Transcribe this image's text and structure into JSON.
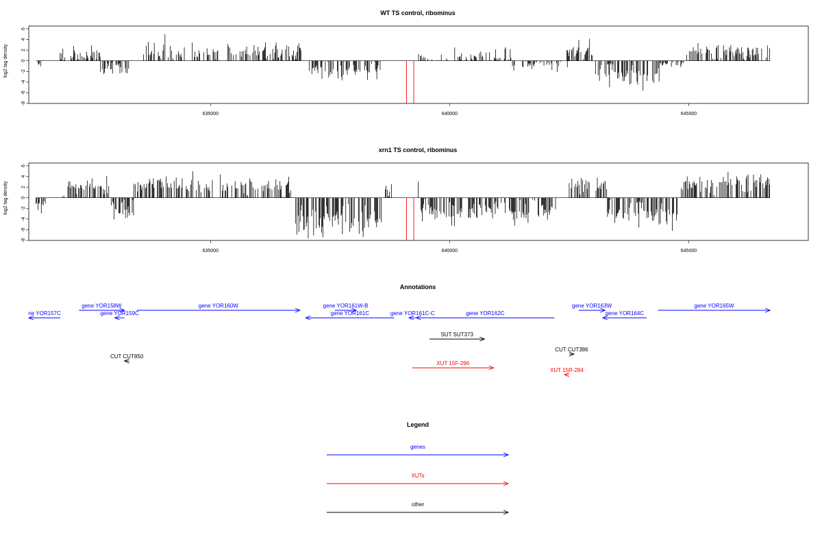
{
  "chart_data": [
    {
      "type": "bar",
      "title": "WT TS control, ribominus",
      "ylabel": "log2 tag density",
      "xlabel": "",
      "xlim": [
        631200,
        647500
      ],
      "ylim": [
        -8,
        6
      ],
      "yticks": [
        -8,
        -6,
        -4,
        -2,
        0,
        2,
        4,
        6
      ],
      "xticks": [
        635000,
        640000,
        645000
      ],
      "xtick_labels": [
        "635000",
        "640000",
        "645000"
      ],
      "bar_color": "#000000",
      "segments": [
        {
          "from": 631350,
          "to": 631450,
          "mu": -0.6,
          "sd": 0.5
        },
        {
          "from": 631800,
          "to": 632300,
          "mu": 0.9,
          "sd": 0.9
        },
        {
          "from": 632300,
          "to": 632700,
          "mu": 1.3,
          "sd": 0.8
        },
        {
          "from": 632700,
          "to": 633300,
          "mu": -2.0,
          "sd": 1.0
        },
        {
          "from": 633600,
          "to": 634200,
          "mu": 1.6,
          "sd": 1.1
        },
        {
          "from": 634200,
          "to": 635200,
          "mu": 1.5,
          "sd": 0.8
        },
        {
          "from": 635350,
          "to": 636900,
          "mu": 1.7,
          "sd": 0.9
        },
        {
          "from": 637050,
          "to": 638600,
          "mu": -1.8,
          "sd": 0.9
        },
        {
          "from": 639350,
          "to": 641300,
          "mu": 0.5,
          "sd": 0.8
        },
        {
          "from": 641300,
          "to": 642500,
          "mu": -0.6,
          "sd": 0.6
        },
        {
          "from": 642450,
          "to": 643000,
          "mu": 1.6,
          "sd": 1.0
        },
        {
          "from": 643050,
          "to": 644400,
          "mu": -2.8,
          "sd": 1.1
        },
        {
          "from": 644400,
          "to": 644900,
          "mu": -0.5,
          "sd": 0.4
        },
        {
          "from": 644900,
          "to": 646700,
          "mu": 1.6,
          "sd": 0.8
        }
      ],
      "red_lines": [
        639100,
        639250
      ]
    },
    {
      "type": "bar",
      "title": "xrn1 TS control, ribominus",
      "ylabel": "log2 tag density",
      "xlabel": "",
      "xlim": [
        631200,
        647500
      ],
      "ylim": [
        -8,
        6
      ],
      "yticks": [
        -8,
        -6,
        -4,
        -2,
        0,
        2,
        4,
        6
      ],
      "xticks": [
        635000,
        640000,
        645000
      ],
      "xtick_labels": [
        "635000",
        "640000",
        "645000"
      ],
      "bar_color": "#000000",
      "segments": [
        {
          "from": 631350,
          "to": 631550,
          "mu": -1.5,
          "sd": 0.6
        },
        {
          "from": 631850,
          "to": 632900,
          "mu": 1.8,
          "sd": 0.9
        },
        {
          "from": 632900,
          "to": 633400,
          "mu": -2.4,
          "sd": 1.0
        },
        {
          "from": 633400,
          "to": 636700,
          "mu": 2.2,
          "sd": 0.9
        },
        {
          "from": 636750,
          "to": 638600,
          "mu": -4.2,
          "sd": 1.5
        },
        {
          "from": 638600,
          "to": 638800,
          "mu": 1.5,
          "sd": 0.8
        },
        {
          "from": 639300,
          "to": 639350,
          "mu": 2.5,
          "sd": 0.3
        },
        {
          "from": 639400,
          "to": 642250,
          "mu": -2.4,
          "sd": 1.1
        },
        {
          "from": 642500,
          "to": 643300,
          "mu": 2.3,
          "sd": 0.9
        },
        {
          "from": 643300,
          "to": 644800,
          "mu": -3.2,
          "sd": 1.2
        },
        {
          "from": 644800,
          "to": 646700,
          "mu": 2.7,
          "sd": 1.0
        }
      ],
      "red_lines": [
        639100,
        639250
      ]
    }
  ],
  "annotations": {
    "title": "Annotations",
    "features": [
      {
        "label": "ne YOR157C",
        "start": 631200,
        "end": 631860,
        "strand": "-",
        "type": "gene"
      },
      {
        "label": "gene YOR158W",
        "start": 632250,
        "end": 633200,
        "strand": "+",
        "type": "gene"
      },
      {
        "label": "gene YOR159C",
        "start": 633000,
        "end": 633200,
        "strand": "-",
        "type": "gene"
      },
      {
        "label": "gene YOR160W",
        "start": 633460,
        "end": 636870,
        "strand": "+",
        "type": "gene"
      },
      {
        "label": "gene YOR161W-B",
        "start": 637600,
        "end": 638050,
        "strand": "+",
        "type": "gene"
      },
      {
        "label": "gene YOR161C",
        "start": 636990,
        "end": 638840,
        "strand": "-",
        "type": "gene"
      },
      {
        "label": "gene YOR161C-C",
        "start": 639150,
        "end": 639300,
        "strand": "-",
        "type": "gene"
      },
      {
        "label": "gene YOR162C",
        "start": 639300,
        "end": 642190,
        "strand": "-",
        "type": "gene"
      },
      {
        "label": "gene YOR163W",
        "start": 642700,
        "end": 643250,
        "strand": "+",
        "type": "gene"
      },
      {
        "label": "gene YOR164C",
        "start": 643200,
        "end": 644120,
        "strand": "-",
        "type": "gene"
      },
      {
        "label": "gene YOR165W",
        "start": 644360,
        "end": 646700,
        "strand": "+",
        "type": "gene"
      },
      {
        "label": "SUT SUT373",
        "start": 639580,
        "end": 640730,
        "strand": "+",
        "type": "other"
      },
      {
        "label": "CUT CUT850",
        "start": 633200,
        "end": 633300,
        "strand": "-",
        "type": "other"
      },
      {
        "label": "CUT CUT386",
        "start": 642500,
        "end": 642600,
        "strand": "+",
        "type": "other"
      },
      {
        "label": "XUT 15F-296",
        "start": 639220,
        "end": 640920,
        "strand": "+",
        "type": "xut"
      },
      {
        "label": "XUT 15R-284",
        "start": 642400,
        "end": 642500,
        "strand": "-",
        "type": "xut"
      }
    ]
  },
  "legend": {
    "title": "Legend",
    "items": [
      {
        "label": "genes",
        "color": "#0000ff"
      },
      {
        "label": "XUTs",
        "color": "#ff0000"
      },
      {
        "label": "other",
        "color": "#000000"
      }
    ]
  },
  "colors": {
    "gene": "#0000ff",
    "xut": "#ff0000",
    "other": "#000000",
    "axis": "#000000"
  }
}
